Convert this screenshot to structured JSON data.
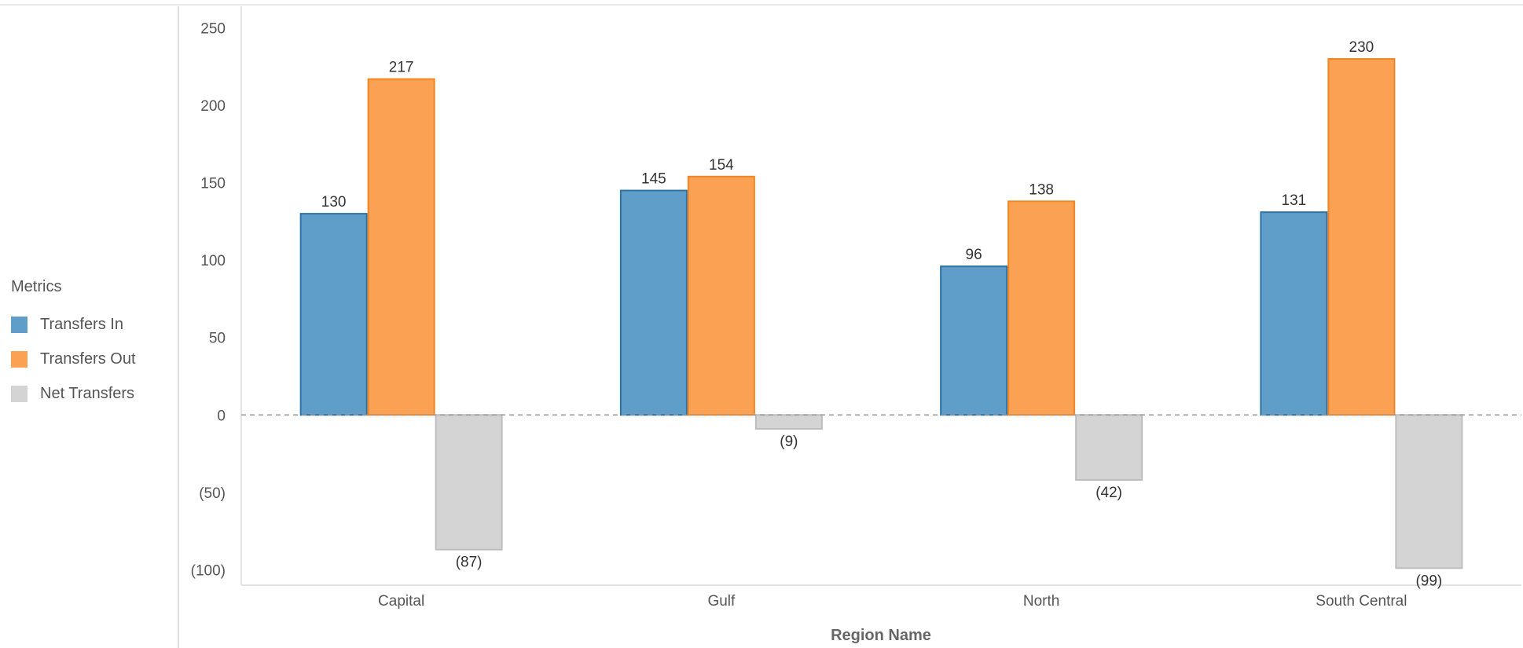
{
  "legend": {
    "title": "Metrics",
    "items": [
      {
        "label": "Transfers In",
        "color": "#5f9ec9",
        "stroke": "#2e73a8"
      },
      {
        "label": "Transfers Out",
        "color": "#fba153",
        "stroke": "#f28522"
      },
      {
        "label": "Net Transfers",
        "color": "#d4d4d4",
        "stroke": "#bdbdbd"
      }
    ]
  },
  "chart_data": {
    "type": "bar",
    "categories": [
      "Capital",
      "Gulf",
      "North",
      "South Central"
    ],
    "series": [
      {
        "name": "Transfers In",
        "values": [
          130,
          145,
          96,
          131
        ],
        "labels": [
          "130",
          "145",
          "96",
          "131"
        ]
      },
      {
        "name": "Transfers Out",
        "values": [
          217,
          154,
          138,
          230
        ],
        "labels": [
          "217",
          "154",
          "138",
          "230"
        ]
      },
      {
        "name": "Net Transfers",
        "values": [
          -87,
          -9,
          -42,
          -99
        ],
        "labels": [
          "(87)",
          "(9)",
          "(42)",
          "(99)"
        ]
      }
    ],
    "xlabel": "Region Name",
    "ylabel": "",
    "ylim": [
      -110,
      262
    ],
    "yticks": [
      250,
      200,
      150,
      100,
      50,
      0,
      -50,
      -100
    ],
    "ytick_labels": [
      "250",
      "200",
      "150",
      "100",
      "50",
      "0",
      "(50)",
      "(100)"
    ],
    "zero_line": "dashed",
    "legend_position": "left"
  }
}
